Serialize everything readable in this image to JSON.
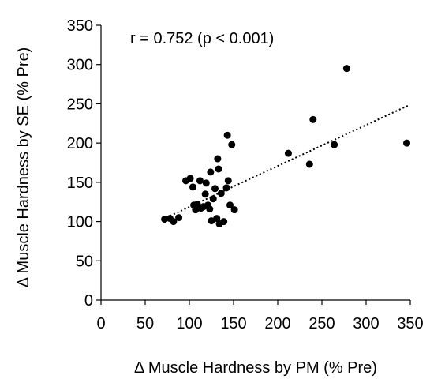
{
  "chart_data": {
    "type": "scatter",
    "title": "",
    "annotation": "r = 0.752 (p < 0.001)",
    "xlabel": "Δ Muscle Hardness by PM (% Pre)",
    "ylabel": "Δ Muscle Hardness by SE (% Pre)",
    "xlim": [
      0,
      350
    ],
    "ylim": [
      0,
      350
    ],
    "xticks": [
      "0",
      "50",
      "100",
      "150",
      "200",
      "250",
      "300",
      "350"
    ],
    "yticks": [
      "0",
      "50",
      "100",
      "150",
      "200",
      "250",
      "300",
      "350"
    ],
    "grid": false,
    "legend": "none",
    "trendline": {
      "style": "dotted",
      "x": [
        70,
        348
      ],
      "y": [
        103,
        248
      ]
    },
    "points": [
      {
        "x": 72,
        "y": 103
      },
      {
        "x": 78,
        "y": 104
      },
      {
        "x": 82,
        "y": 100
      },
      {
        "x": 88,
        "y": 105
      },
      {
        "x": 96,
        "y": 152
      },
      {
        "x": 101,
        "y": 155
      },
      {
        "x": 104,
        "y": 144
      },
      {
        "x": 105,
        "y": 121
      },
      {
        "x": 107,
        "y": 115
      },
      {
        "x": 109,
        "y": 122
      },
      {
        "x": 112,
        "y": 152
      },
      {
        "x": 113,
        "y": 117
      },
      {
        "x": 116,
        "y": 119
      },
      {
        "x": 118,
        "y": 135
      },
      {
        "x": 119,
        "y": 149
      },
      {
        "x": 121,
        "y": 121
      },
      {
        "x": 123,
        "y": 116
      },
      {
        "x": 124,
        "y": 163
      },
      {
        "x": 125,
        "y": 101
      },
      {
        "x": 127,
        "y": 129
      },
      {
        "x": 129,
        "y": 142
      },
      {
        "x": 131,
        "y": 104
      },
      {
        "x": 132,
        "y": 180
      },
      {
        "x": 133,
        "y": 167
      },
      {
        "x": 134,
        "y": 97
      },
      {
        "x": 136,
        "y": 136
      },
      {
        "x": 139,
        "y": 100
      },
      {
        "x": 142,
        "y": 143
      },
      {
        "x": 143,
        "y": 210
      },
      {
        "x": 144,
        "y": 152
      },
      {
        "x": 146,
        "y": 121
      },
      {
        "x": 148,
        "y": 198
      },
      {
        "x": 151,
        "y": 115
      },
      {
        "x": 212,
        "y": 187
      },
      {
        "x": 236,
        "y": 173
      },
      {
        "x": 240,
        "y": 230
      },
      {
        "x": 264,
        "y": 198
      },
      {
        "x": 278,
        "y": 295
      },
      {
        "x": 346,
        "y": 200
      }
    ]
  }
}
